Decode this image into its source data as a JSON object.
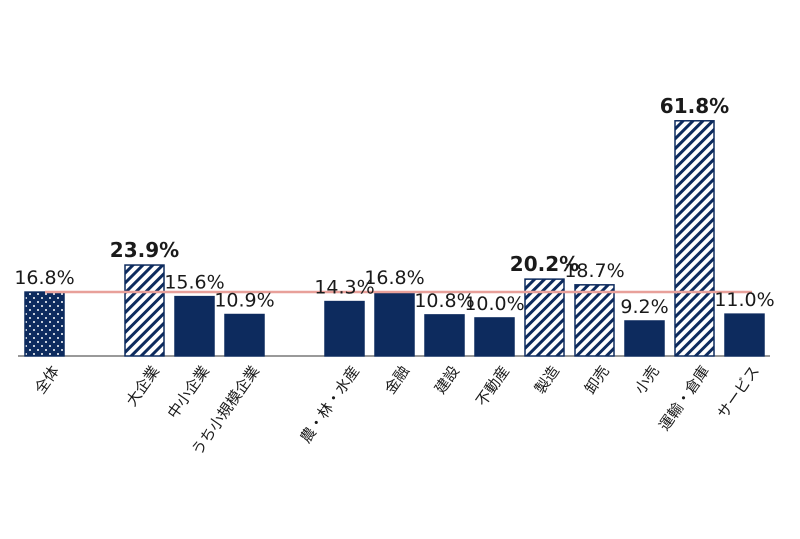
{
  "chart_data": {
    "type": "bar",
    "ylim": [
      0,
      70
    ],
    "grid": false,
    "reference_line": {
      "value": 16.8,
      "color": "#e8a09a"
    },
    "colors": {
      "bar_fill": "#0d2b5e",
      "pattern_fg": "#0d2b5e",
      "pattern_bg": "#ffffff",
      "axis": "#333333"
    },
    "categories": [
      "全体",
      "大企業",
      "中小企業",
      "うち小規模企業",
      "農・林・水産",
      "金融",
      "建設",
      "不動産",
      "製造",
      "卸売",
      "小売",
      "運輸・倉庫",
      "サービス"
    ],
    "values": [
      16.8,
      23.9,
      15.6,
      10.9,
      14.3,
      16.8,
      10.8,
      10.0,
      20.2,
      18.7,
      9.2,
      61.8,
      11.0
    ],
    "value_labels": [
      "16.8%",
      "23.9%",
      "15.6%",
      "10.9%",
      "14.3%",
      "16.8%",
      "10.8%",
      "10.0%",
      "20.2%",
      "18.7%",
      "9.2%",
      "61.8%",
      "11.0%"
    ],
    "styles": [
      "dots",
      "hatch",
      "solid",
      "solid",
      "solid",
      "solid",
      "solid",
      "solid",
      "hatch",
      "hatch",
      "solid",
      "hatch",
      "solid"
    ],
    "bold_labels": [
      false,
      true,
      false,
      false,
      false,
      false,
      false,
      false,
      true,
      false,
      false,
      true,
      false
    ]
  }
}
